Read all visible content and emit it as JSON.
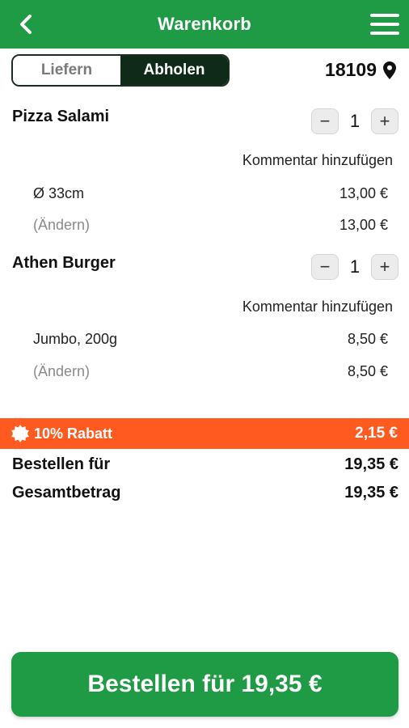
{
  "header": {
    "title": "Warenkorb"
  },
  "mode": {
    "deliver_label": "Liefern",
    "pickup_label": "Abholen",
    "selected": "Abholen"
  },
  "location": {
    "zip": "18109"
  },
  "items": [
    {
      "name": "Pizza Salami",
      "quantity": "1",
      "comment_label": "Kommentar hinzufügen",
      "option_label": "Ø 33cm",
      "option_price": "13,00 €",
      "change_label": "(Ändern)",
      "line_total": "13,00 €"
    },
    {
      "name": "Athen Burger",
      "quantity": "1",
      "comment_label": "Kommentar hinzufügen",
      "option_label": "Jumbo, 200g",
      "option_price": "8,50 €",
      "change_label": "(Ändern)",
      "line_total": "8,50 €"
    }
  ],
  "discount": {
    "label": "10% Rabatt",
    "amount": "2,15 €"
  },
  "summary": {
    "order_for_label": "Bestellen für",
    "order_for_value": "19,35 €",
    "total_label": "Gesamtbetrag",
    "total_value": "19,35 €"
  },
  "cta": {
    "label": "Bestellen für 19,35 €"
  },
  "colors": {
    "primary": "#1f9a45",
    "discount": "#ff5a1f",
    "toggle_active": "#102a1a"
  },
  "icons": {
    "back": "chevron-left-icon",
    "menu": "hamburger-icon",
    "location": "map-pin-icon",
    "discount": "badge-icon"
  }
}
